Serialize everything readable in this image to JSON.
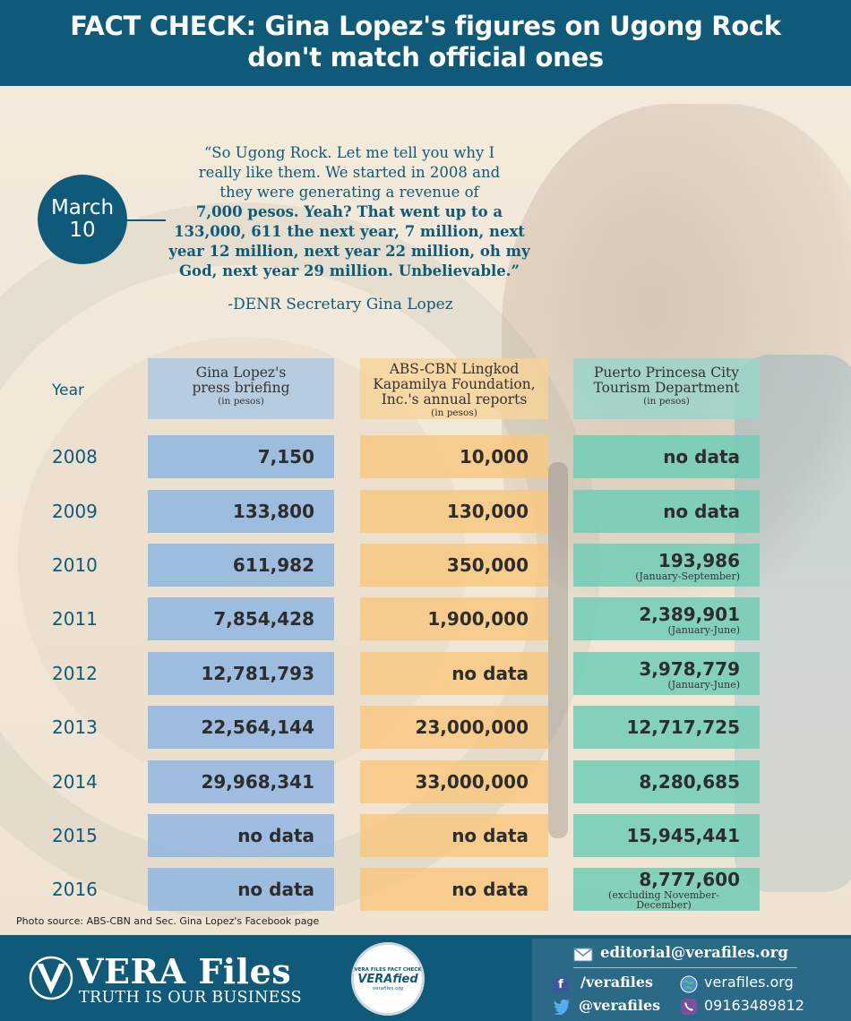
{
  "header": {
    "title_line1": "FACT CHECK: Gina Lopez's figures on Ugong Rock",
    "title_line2": "don't match official ones"
  },
  "date": {
    "month": "March",
    "day": "10"
  },
  "quote": {
    "line1": "“So Ugong Rock. Let me tell you why I",
    "line2": "really like them. We started in 2008 and",
    "line3": "they were generating a revenue of",
    "line4": "7,000 pesos. Yeah? That went up to a",
    "line5": "133,000, 611 the next year, 7 million, next",
    "line6": "year 12 million, next year 22 million, oh my",
    "line7": "God, next year 29 million. Unbelievable.”",
    "attribution": "-DENR Secretary Gina Lopez"
  },
  "table": {
    "year_header": "Year",
    "columns": [
      {
        "title_line1": "Gina Lopez's",
        "title_line2": "press briefing",
        "title_line3": "",
        "unit": "(in pesos)"
      },
      {
        "title_line1": "ABS-CBN Lingkod",
        "title_line2": "Kapamilya Foundation,",
        "title_line3": "Inc.'s annual reports",
        "unit": "(in pesos)"
      },
      {
        "title_line1": "Puerto Princesa City",
        "title_line2": "Tourism Department",
        "title_line3": "",
        "unit": "(in pesos)"
      }
    ],
    "rows": [
      {
        "year": "2008",
        "lopez": "7,150",
        "abscbn": "10,000",
        "puerto": "no data",
        "puerto_note": ""
      },
      {
        "year": "2009",
        "lopez": "133,800",
        "abscbn": "130,000",
        "puerto": "no data",
        "puerto_note": ""
      },
      {
        "year": "2010",
        "lopez": "611,982",
        "abscbn": "350,000",
        "puerto": "193,986",
        "puerto_note": "(January-September)"
      },
      {
        "year": "2011",
        "lopez": "7,854,428",
        "abscbn": "1,900,000",
        "puerto": "2,389,901",
        "puerto_note": "(January-June)"
      },
      {
        "year": "2012",
        "lopez": "12,781,793",
        "abscbn": "no data",
        "puerto": "3,978,779",
        "puerto_note": "(January-June)"
      },
      {
        "year": "2013",
        "lopez": "22,564,144",
        "abscbn": "23,000,000",
        "puerto": "12,717,725",
        "puerto_note": ""
      },
      {
        "year": "2014",
        "lopez": "29,968,341",
        "abscbn": "33,000,000",
        "puerto": "8,280,685",
        "puerto_note": ""
      },
      {
        "year": "2015",
        "lopez": "no data",
        "abscbn": "no data",
        "puerto": "15,945,441",
        "puerto_note": ""
      },
      {
        "year": "2016",
        "lopez": "no data",
        "abscbn": "no data",
        "puerto": "8,777,600",
        "puerto_note": "(excluding November-December)"
      }
    ]
  },
  "photo_source": "Photo source: ABS-CBN and Sec. Gina Lopez's Facebook page",
  "footer": {
    "brand": "VERA Files",
    "tagline": "TRUTH IS OUR BUSINESS",
    "badge_top": "VERA FILES FACT CHECK",
    "badge_main": "VERAfied",
    "badge_bottom": "verafiles.org",
    "email": "editorial@verafiles.org",
    "facebook": "/verafiles",
    "website": "verafiles.org",
    "twitter": "@verafiles",
    "phone": "09163489812"
  }
}
